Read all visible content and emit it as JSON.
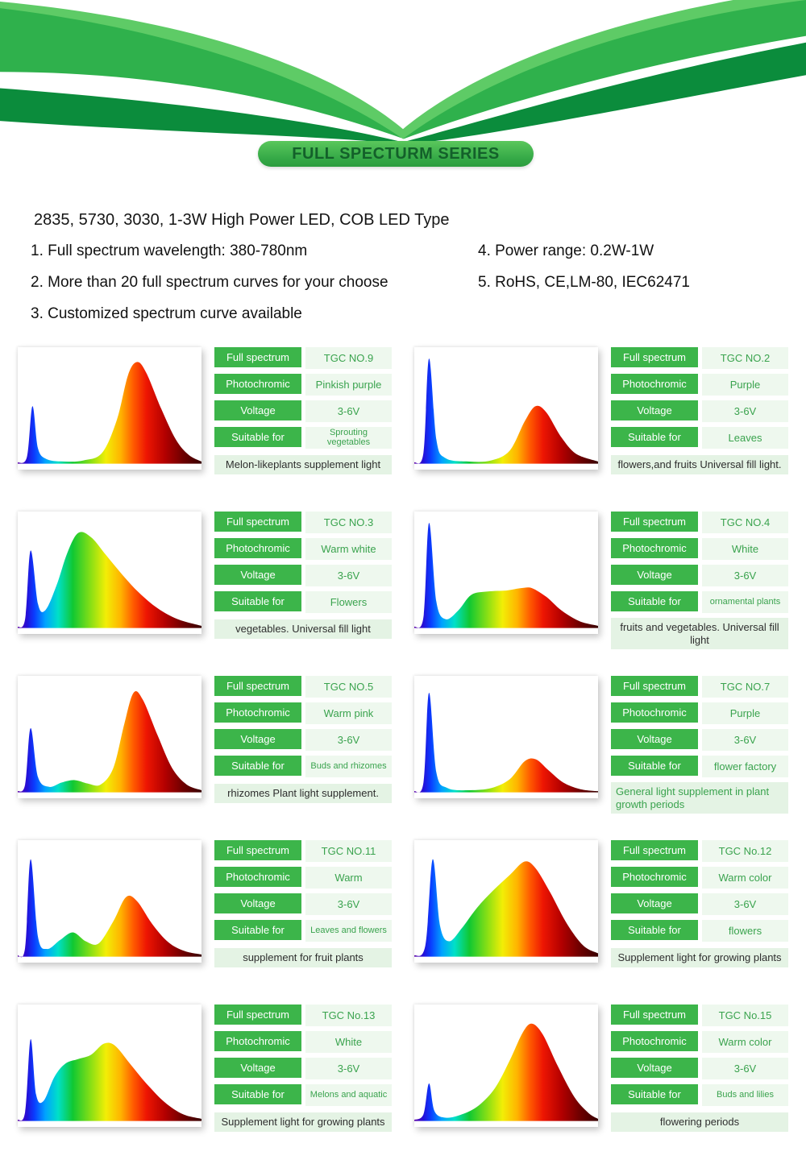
{
  "page": {
    "badge": "FULL SPECTURM SERIES",
    "heading": "2835, 5730, 3030, 1-3W High Power LED, COB LED Type",
    "features_left": [
      "1. Full spectrum wavelength: 380-780nm",
      "2. More than 20 full spectrum curves for your choose",
      "3. Customized spectrum curve available"
    ],
    "features_right": [
      "4. Power range: 0.2W-1W",
      "5. RoHS, CE,LM-80, IEC62471"
    ]
  },
  "table_labels": {
    "full_spectrum": "Full spectrum",
    "photochromic": "Photochromic",
    "voltage": "Voltage",
    "suitable_for": "Suitable for"
  },
  "colors": {
    "brand_green": "#3cb54a",
    "dark_wave_green": "#0b8c3c",
    "bright_wave_green": "#2fb14c",
    "light_wave_green": "#5ecb66",
    "value_text_green": "#3aa34e",
    "value_bg": "#eef8ee",
    "caption_bg": "#e4f3e4"
  },
  "spectrum_gradient": [
    [
      0,
      "#5b00a8"
    ],
    [
      5,
      "#2410d8"
    ],
    [
      9,
      "#0a3cff"
    ],
    [
      15,
      "#00a2ff"
    ],
    [
      22,
      "#00e0c8"
    ],
    [
      30,
      "#10c832"
    ],
    [
      40,
      "#8ce014"
    ],
    [
      48,
      "#f2ee06"
    ],
    [
      56,
      "#ffb400"
    ],
    [
      63,
      "#ff5a00"
    ],
    [
      70,
      "#ee1602"
    ],
    [
      80,
      "#b40000"
    ],
    [
      90,
      "#6e0000"
    ],
    [
      100,
      "#380000"
    ]
  ],
  "cards": [
    {
      "model": "TGC NO.9",
      "photochromic": "Pinkish purple",
      "voltage": "3-6V",
      "suitable_for": "Sprouting vegetables",
      "caption": "Melon-likeplants supplement light",
      "caption_green": false,
      "spectrum": [
        [
          0,
          1
        ],
        [
          5,
          6
        ],
        [
          8,
          52
        ],
        [
          11,
          14
        ],
        [
          16,
          4
        ],
        [
          26,
          2
        ],
        [
          36,
          3
        ],
        [
          46,
          10
        ],
        [
          54,
          40
        ],
        [
          60,
          80
        ],
        [
          65,
          92
        ],
        [
          70,
          82
        ],
        [
          78,
          50
        ],
        [
          86,
          22
        ],
        [
          93,
          8
        ],
        [
          100,
          2
        ]
      ]
    },
    {
      "model": "TGC NO.2",
      "photochromic": "Purple",
      "voltage": "3-6V",
      "suitable_for": "Leaves",
      "caption": "flowers,and fruits Universal fill light.",
      "caption_green": false,
      "spectrum": [
        [
          0,
          1
        ],
        [
          5,
          10
        ],
        [
          8,
          95
        ],
        [
          12,
          22
        ],
        [
          17,
          5
        ],
        [
          30,
          2
        ],
        [
          42,
          3
        ],
        [
          52,
          12
        ],
        [
          60,
          38
        ],
        [
          66,
          52
        ],
        [
          72,
          46
        ],
        [
          80,
          24
        ],
        [
          88,
          9
        ],
        [
          100,
          2
        ]
      ]
    },
    {
      "model": "TGC NO.3",
      "photochromic": "Warm white",
      "voltage": "3-6V",
      "suitable_for": "Flowers",
      "caption": "vegetables. Universal fill light",
      "caption_green": false,
      "spectrum": [
        [
          0,
          1
        ],
        [
          4,
          8
        ],
        [
          7,
          70
        ],
        [
          11,
          22
        ],
        [
          15,
          16
        ],
        [
          21,
          38
        ],
        [
          27,
          68
        ],
        [
          33,
          86
        ],
        [
          40,
          82
        ],
        [
          48,
          66
        ],
        [
          57,
          48
        ],
        [
          66,
          32
        ],
        [
          76,
          18
        ],
        [
          87,
          8
        ],
        [
          100,
          2
        ]
      ]
    },
    {
      "model": "TGC NO.4",
      "photochromic": "White",
      "voltage": "3-6V",
      "suitable_for": "ornamental plants",
      "caption": "fruits and vegetables. Universal fill light",
      "caption_green": false,
      "spectrum": [
        [
          0,
          1
        ],
        [
          5,
          10
        ],
        [
          8,
          95
        ],
        [
          12,
          24
        ],
        [
          17,
          8
        ],
        [
          24,
          16
        ],
        [
          31,
          30
        ],
        [
          40,
          33
        ],
        [
          50,
          34
        ],
        [
          58,
          36
        ],
        [
          64,
          36
        ],
        [
          72,
          28
        ],
        [
          80,
          16
        ],
        [
          90,
          6
        ],
        [
          100,
          2
        ]
      ]
    },
    {
      "model": "TGC NO.5",
      "photochromic": "Warm pink",
      "voltage": "3-6V",
      "suitable_for": "Buds and rhizomes",
      "caption": "rhizomes Plant light supplement.",
      "caption_green": false,
      "spectrum": [
        [
          0,
          1
        ],
        [
          4,
          7
        ],
        [
          7,
          58
        ],
        [
          11,
          14
        ],
        [
          17,
          5
        ],
        [
          24,
          9
        ],
        [
          31,
          11
        ],
        [
          38,
          8
        ],
        [
          45,
          7
        ],
        [
          52,
          22
        ],
        [
          58,
          62
        ],
        [
          63,
          90
        ],
        [
          68,
          84
        ],
        [
          76,
          52
        ],
        [
          84,
          22
        ],
        [
          92,
          7
        ],
        [
          100,
          2
        ]
      ]
    },
    {
      "model": "TGC NO.7",
      "photochromic": "Purple",
      "voltage": "3-6V",
      "suitable_for": "flower factory",
      "caption": "General light supplement in plant growth periods",
      "caption_green": true,
      "spectrum": [
        [
          0,
          1
        ],
        [
          5,
          9
        ],
        [
          8,
          90
        ],
        [
          12,
          18
        ],
        [
          18,
          4
        ],
        [
          30,
          2
        ],
        [
          42,
          4
        ],
        [
          52,
          12
        ],
        [
          60,
          28
        ],
        [
          66,
          30
        ],
        [
          73,
          20
        ],
        [
          81,
          9
        ],
        [
          90,
          3
        ],
        [
          100,
          1
        ]
      ]
    },
    {
      "model": "TGC NO.11",
      "photochromic": "Warm",
      "voltage": "3-6V",
      "suitable_for": "Leaves and flowers",
      "caption": "supplement for fruit plants",
      "caption_green": false,
      "spectrum": [
        [
          0,
          1
        ],
        [
          4,
          8
        ],
        [
          7,
          88
        ],
        [
          11,
          18
        ],
        [
          16,
          7
        ],
        [
          23,
          15
        ],
        [
          30,
          22
        ],
        [
          37,
          14
        ],
        [
          44,
          12
        ],
        [
          52,
          32
        ],
        [
          59,
          54
        ],
        [
          65,
          50
        ],
        [
          73,
          30
        ],
        [
          82,
          13
        ],
        [
          91,
          5
        ],
        [
          100,
          2
        ]
      ]
    },
    {
      "model": "TGC No.12",
      "photochromic": "Warm color",
      "voltage": "3-6V",
      "suitable_for": "flowers",
      "caption": "Supplement light for growing plants",
      "caption_green": false,
      "spectrum": [
        [
          0,
          1
        ],
        [
          6,
          10
        ],
        [
          10,
          88
        ],
        [
          14,
          28
        ],
        [
          19,
          14
        ],
        [
          26,
          26
        ],
        [
          34,
          44
        ],
        [
          43,
          60
        ],
        [
          52,
          74
        ],
        [
          60,
          86
        ],
        [
          66,
          80
        ],
        [
          74,
          58
        ],
        [
          83,
          30
        ],
        [
          92,
          10
        ],
        [
          100,
          3
        ]
      ]
    },
    {
      "model": "TGC No.13",
      "photochromic": "White",
      "voltage": "3-6V",
      "suitable_for": "Melons and aquatic",
      "caption": "Supplement light for growing plants",
      "caption_green": false,
      "spectrum": [
        [
          0,
          1
        ],
        [
          4,
          8
        ],
        [
          7,
          74
        ],
        [
          10,
          24
        ],
        [
          14,
          18
        ],
        [
          20,
          40
        ],
        [
          26,
          52
        ],
        [
          33,
          56
        ],
        [
          40,
          60
        ],
        [
          47,
          70
        ],
        [
          53,
          68
        ],
        [
          61,
          52
        ],
        [
          70,
          34
        ],
        [
          80,
          17
        ],
        [
          90,
          6
        ],
        [
          100,
          2
        ]
      ]
    },
    {
      "model": "TGC No.15",
      "photochromic": "Warm color",
      "voltage": "3-6V",
      "suitable_for": "Buds and lilies",
      "caption": "flowering periods",
      "caption_green": false,
      "spectrum": [
        [
          0,
          1
        ],
        [
          5,
          6
        ],
        [
          8,
          34
        ],
        [
          11,
          9
        ],
        [
          17,
          3
        ],
        [
          26,
          6
        ],
        [
          35,
          14
        ],
        [
          44,
          30
        ],
        [
          52,
          55
        ],
        [
          59,
          80
        ],
        [
          64,
          88
        ],
        [
          70,
          78
        ],
        [
          78,
          50
        ],
        [
          87,
          22
        ],
        [
          95,
          7
        ],
        [
          100,
          2
        ]
      ]
    }
  ]
}
